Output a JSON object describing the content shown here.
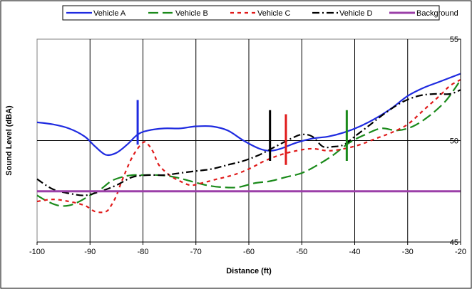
{
  "chart_data": {
    "type": "line",
    "title": "",
    "xlabel": "Distance (ft)",
    "ylabel": "Sound Level (dBA)",
    "xlim": [
      -100,
      -20
    ],
    "ylim": [
      45,
      55
    ],
    "x_ticks": [
      -100,
      -90,
      -80,
      -70,
      -60,
      -50,
      -40,
      -30,
      -20
    ],
    "y_ticks": [
      45,
      50,
      55
    ],
    "grid": "vertical lines at x ticks, horizontal line at 50",
    "legend_position": "top",
    "series": [
      {
        "name": "Vehicle A",
        "color": "#1f2be0",
        "dash": "solid",
        "x": [
          -100,
          -97,
          -94,
          -91,
          -89,
          -87,
          -85,
          -83,
          -81,
          -79,
          -76,
          -73,
          -70,
          -67,
          -64,
          -61,
          -58,
          -56,
          -54,
          -51,
          -48,
          -45,
          -42,
          -39,
          -36,
          -33,
          -30,
          -27,
          -24,
          -20
        ],
        "y": [
          50.9,
          50.8,
          50.6,
          50.2,
          49.7,
          49.3,
          49.4,
          49.8,
          50.3,
          50.5,
          50.6,
          50.6,
          50.7,
          50.7,
          50.5,
          50.0,
          49.6,
          49.5,
          49.6,
          49.9,
          50.1,
          50.2,
          50.4,
          50.7,
          51.1,
          51.6,
          52.2,
          52.6,
          52.9,
          53.3
        ]
      },
      {
        "name": "Vehicle B",
        "color": "#1a8a1a",
        "dash": "long",
        "x": [
          -100,
          -98,
          -96,
          -94,
          -92,
          -90,
          -88,
          -86,
          -84,
          -82,
          -80,
          -77,
          -74,
          -71,
          -68,
          -65,
          -62,
          -59,
          -56,
          -53,
          -50,
          -47,
          -44,
          -41,
          -38,
          -35,
          -32,
          -29,
          -26,
          -23,
          -21,
          -20
        ],
        "y": [
          47.3,
          47.0,
          46.8,
          46.8,
          47.0,
          47.3,
          47.6,
          48.0,
          48.2,
          48.3,
          48.3,
          48.3,
          48.2,
          48.0,
          47.8,
          47.7,
          47.7,
          47.9,
          48.0,
          48.2,
          48.4,
          48.8,
          49.3,
          49.9,
          50.3,
          50.6,
          50.5,
          50.7,
          51.2,
          51.9,
          52.6,
          53.0
        ]
      },
      {
        "name": "Vehicle C",
        "color": "#e01a1a",
        "dash": "short",
        "x": [
          -100,
          -97,
          -94,
          -91,
          -89,
          -87,
          -86,
          -85,
          -84,
          -82,
          -80,
          -79,
          -78,
          -77,
          -75,
          -73,
          -71,
          -69,
          -66,
          -63,
          -60,
          -57,
          -54,
          -51,
          -48,
          -45,
          -42,
          -39,
          -36,
          -33,
          -30,
          -27,
          -24,
          -22,
          -20
        ],
        "y": [
          47.0,
          47.1,
          47.0,
          46.8,
          46.5,
          46.5,
          46.8,
          47.3,
          48.0,
          49.2,
          49.9,
          49.8,
          49.4,
          48.8,
          48.3,
          48.0,
          47.8,
          47.9,
          48.1,
          48.3,
          48.6,
          49.0,
          49.3,
          49.5,
          49.6,
          49.5,
          49.6,
          49.8,
          50.1,
          50.4,
          50.8,
          51.5,
          52.2,
          52.7,
          53.0
        ]
      },
      {
        "name": "Vehicle D",
        "color": "#000000",
        "dash": "dashdot",
        "x": [
          -100,
          -97,
          -94,
          -91,
          -88,
          -85,
          -82,
          -79,
          -76,
          -73,
          -70,
          -67,
          -64,
          -61,
          -58,
          -55,
          -52,
          -50,
          -48,
          -46,
          -44,
          -42,
          -40,
          -37,
          -34,
          -31,
          -28,
          -25,
          -22,
          -20
        ],
        "y": [
          48.1,
          47.6,
          47.4,
          47.3,
          47.5,
          47.8,
          48.2,
          48.3,
          48.3,
          48.4,
          48.5,
          48.6,
          48.8,
          49.0,
          49.3,
          49.7,
          50.1,
          50.3,
          50.2,
          49.7,
          49.7,
          49.8,
          50.2,
          50.8,
          51.4,
          51.9,
          52.2,
          52.3,
          52.3,
          52.5
        ]
      },
      {
        "name": "Background",
        "color": "#9b3fa8",
        "dash": "solid",
        "x": [
          -100,
          -20
        ],
        "y": [
          47.5,
          47.5
        ]
      }
    ],
    "markers": [
      {
        "x": -81,
        "y_from": 49.8,
        "y_to": 52.0,
        "color": "#1f2be0"
      },
      {
        "x": -56,
        "y_from": 49.0,
        "y_to": 51.5,
        "color": "#000000"
      },
      {
        "x": -53,
        "y_from": 48.8,
        "y_to": 51.3,
        "color": "#e01a1a"
      },
      {
        "x": -41.5,
        "y_from": 49.0,
        "y_to": 51.5,
        "color": "#1a8a1a"
      }
    ]
  }
}
